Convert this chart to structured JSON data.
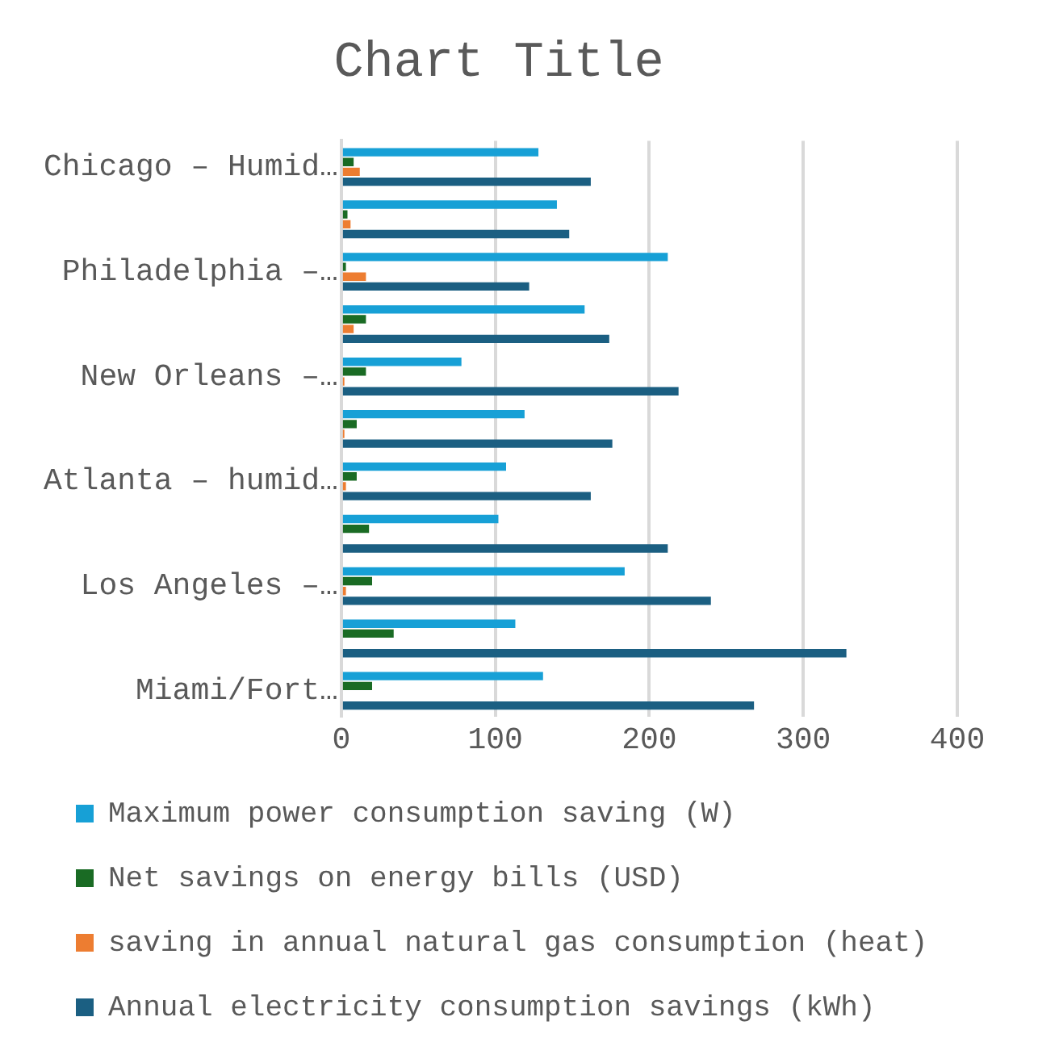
{
  "chart_data": {
    "type": "bar",
    "orientation": "horizontal",
    "title": "Chart Title",
    "categories": [
      "Chicago – Humid…",
      null,
      "Philadelphia –…",
      null,
      "New Orleans –…",
      null,
      "Atlanta – humid…",
      null,
      "Los Angeles –…",
      null,
      "Miami/Fort…"
    ],
    "series": [
      {
        "name": "Maximum power consumption saving (W)",
        "color": "#17a0d6",
        "values": [
          128,
          140,
          212,
          158,
          78,
          119,
          107,
          102,
          184,
          113,
          131
        ]
      },
      {
        "name": "Net savings on energy bills (USD)",
        "color": "#1a6b24",
        "values": [
          8,
          4,
          3,
          16,
          16,
          10,
          10,
          18,
          20,
          34,
          20
        ]
      },
      {
        "name": "saving in annual natural gas consumption (heat)",
        "color": "#ed7d31",
        "values": [
          12,
          6,
          16,
          8,
          2,
          2,
          3,
          null,
          3,
          null,
          null
        ]
      },
      {
        "name": "Annual electricity consumption savings (kWh)",
        "color": "#1b5f82",
        "values": [
          162,
          148,
          122,
          174,
          219,
          176,
          162,
          212,
          240,
          328,
          268
        ]
      }
    ],
    "xlim": [
      0,
      400
    ],
    "xticks": [
      0,
      100,
      200,
      300,
      400
    ],
    "grid": "x",
    "legend": "bottom"
  }
}
